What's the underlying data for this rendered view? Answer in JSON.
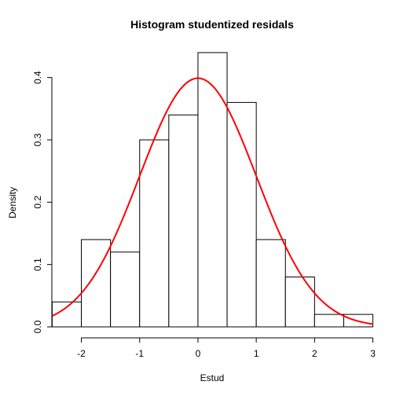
{
  "chart_data": {
    "type": "bar",
    "title": "Histogram studentized residals",
    "xlabel": "Estud",
    "ylabel": "Density",
    "bins": [
      {
        "from": -2.5,
        "to": -2.0,
        "density": 0.04
      },
      {
        "from": -2.0,
        "to": -1.5,
        "density": 0.14
      },
      {
        "from": -1.5,
        "to": -1.0,
        "density": 0.12
      },
      {
        "from": -1.0,
        "to": -0.5,
        "density": 0.3
      },
      {
        "from": -0.5,
        "to": 0.0,
        "density": 0.34
      },
      {
        "from": 0.0,
        "to": 0.5,
        "density": 0.44
      },
      {
        "from": 0.5,
        "to": 1.0,
        "density": 0.36
      },
      {
        "from": 1.0,
        "to": 1.5,
        "density": 0.14
      },
      {
        "from": 1.5,
        "to": 2.0,
        "density": 0.08
      },
      {
        "from": 2.0,
        "to": 2.5,
        "density": 0.02
      },
      {
        "from": 2.5,
        "to": 3.0,
        "density": 0.02
      }
    ],
    "curve": {
      "type": "normal-density",
      "mean": 0,
      "sd": 1,
      "color": "#ff0000",
      "x_range": [
        -2.5,
        3.0
      ]
    },
    "x_ticks": [
      -2,
      -1,
      0,
      1,
      2,
      3
    ],
    "x_tick_labels": [
      "-2",
      "-1",
      "0",
      "1",
      "2",
      "3"
    ],
    "y_ticks": [
      0.0,
      0.1,
      0.2,
      0.3,
      0.4
    ],
    "y_tick_labels": [
      "0.0",
      "0.1",
      "0.2",
      "0.3",
      "0.4"
    ],
    "xlim": [
      -2.6,
      3.1
    ],
    "ylim": [
      0,
      0.45
    ],
    "grid": false,
    "colors": {
      "bar_fill": "#ffffff",
      "bar_stroke": "#000000",
      "curve": "#ff0000"
    }
  }
}
